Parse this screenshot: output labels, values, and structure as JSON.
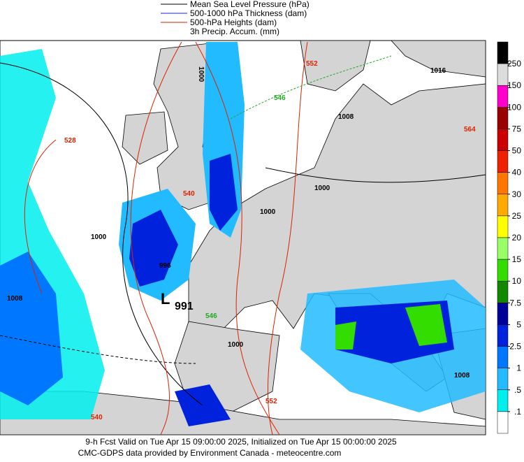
{
  "legend": {
    "items": [
      {
        "label": "Mean Sea Level Pressure (hPa)",
        "color": "#000000"
      },
      {
        "label": "500-1000 hPa Thickness (dam)",
        "color": "#2222cc"
      },
      {
        "label": "500-hPa Heights (dam)",
        "color": "#dd2200"
      },
      {
        "label": "3h Precip. Accum. (mm)",
        "color": null
      }
    ]
  },
  "colorbar": {
    "labels": [
      "250",
      "150",
      "100",
      "75",
      "50",
      "40",
      "30",
      "25",
      "20",
      "15",
      "10",
      "7.5",
      "5",
      "2.5",
      "1",
      ".5",
      ".1"
    ],
    "colors": [
      "#000000",
      "#dcdcdc",
      "#ff00cc",
      "#990000",
      "#cc0000",
      "#ee2200",
      "#ff7700",
      "#ffaa00",
      "#ffff00",
      "#99ff66",
      "#33dd00",
      "#118800",
      "#000099",
      "#0022dd",
      "#0077ff",
      "#22bbff",
      "#00eeee",
      "#ffffff"
    ]
  },
  "map": {
    "labels": [
      "1016",
      "1000",
      "528",
      "546",
      "540",
      "552",
      "564",
      "1000",
      "1000",
      "996",
      "991",
      "L",
      "546",
      "1000",
      "552",
      "540",
      "1008",
      "1008",
      "1000",
      "1008"
    ]
  },
  "footer": {
    "line1": "9-h Fcst Valid on Tue Apr 15 09:00:00 2025, Initialized on Tue Apr 15 00:00:00 2025",
    "line2": "CMC-GDPS data provided by Environment Canada - meteocentre.com"
  }
}
